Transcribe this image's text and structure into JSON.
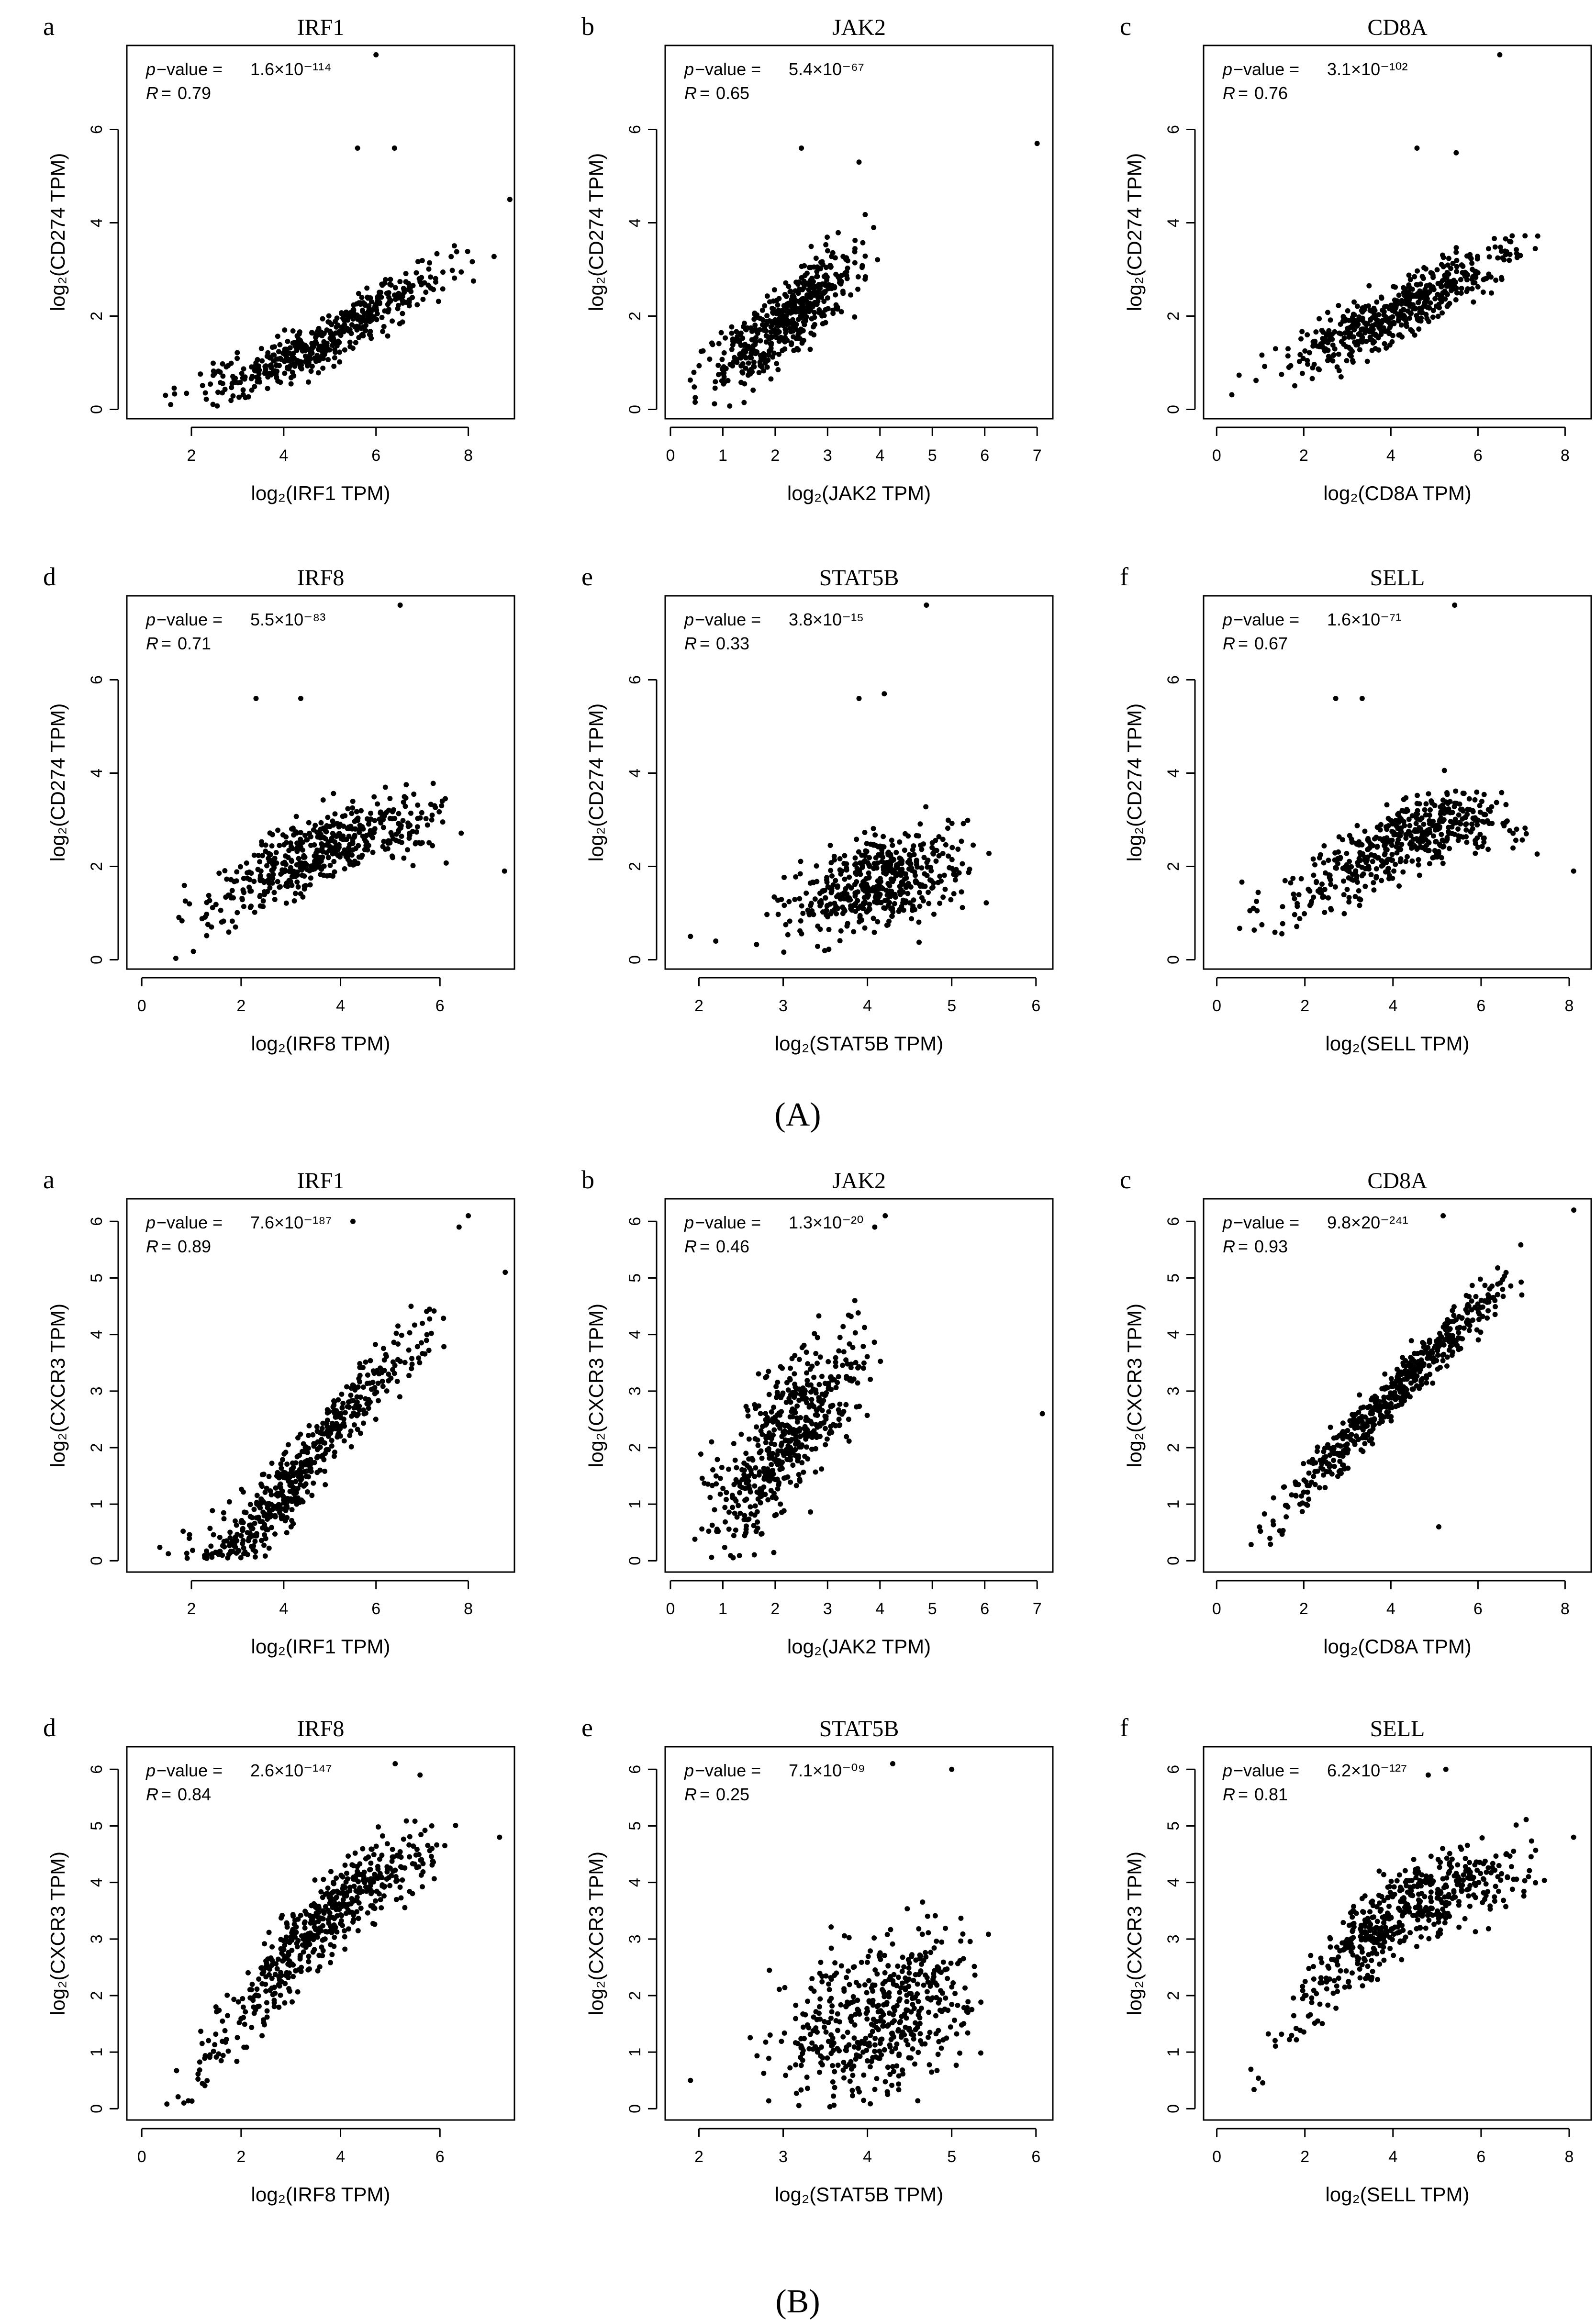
{
  "figure": {
    "group_labels": [
      "(A)",
      "(B)"
    ]
  },
  "chart_data": [
    {
      "group": "A",
      "panel_letter": "a",
      "type": "scatter",
      "title": "IRF1",
      "xlabel": "log₂(IRF1 TPM)",
      "ylabel": "log₂(CD274 TPM)",
      "stat_p": "1.6×10⁻¹¹⁴",
      "stat_r": "0.79",
      "xlim": [
        0.6,
        9
      ],
      "ylim": [
        -0.2,
        7.8
      ],
      "xticks": [
        2,
        4,
        6,
        8
      ],
      "yticks": [
        0,
        2,
        4,
        6
      ],
      "anchors": [
        [
          0.8,
          0.2
        ],
        [
          2,
          0.5
        ],
        [
          3,
          0.6
        ],
        [
          4,
          1.0
        ],
        [
          5,
          1.5
        ],
        [
          6,
          2.2
        ],
        [
          7,
          2.7
        ],
        [
          8.7,
          3.5
        ]
      ],
      "spread": 0.45,
      "n": 500,
      "seed": 11,
      "outliers": [
        [
          6,
          7.6
        ],
        [
          5.6,
          5.6
        ],
        [
          6.4,
          5.6
        ],
        [
          8.9,
          4.5
        ]
      ],
      "marker_color": "#000000"
    },
    {
      "group": "A",
      "panel_letter": "b",
      "type": "scatter",
      "title": "JAK2",
      "xlabel": "log₂(JAK2 TPM)",
      "ylabel": "log₂(CD274 TPM)",
      "stat_p": "5.4×10⁻⁶⁷",
      "stat_r": "0.65",
      "xlim": [
        -0.1,
        7.3
      ],
      "ylim": [
        -0.2,
        7.8
      ],
      "xticks": [
        0,
        1,
        2,
        3,
        4,
        5,
        6,
        7
      ],
      "yticks": [
        0,
        2,
        4,
        6
      ],
      "anchors": [
        [
          0.1,
          0.4
        ],
        [
          0.8,
          0.8
        ],
        [
          1.5,
          1.3
        ],
        [
          2,
          1.8
        ],
        [
          2.7,
          2.4
        ],
        [
          3.5,
          3.0
        ],
        [
          4.2,
          3.6
        ]
      ],
      "spread": 0.75,
      "n": 500,
      "seed": 12,
      "outliers": [
        [
          7,
          5.7
        ],
        [
          2.5,
          5.6
        ],
        [
          3.6,
          5.3
        ]
      ],
      "marker_color": "#000000"
    },
    {
      "group": "A",
      "panel_letter": "c",
      "type": "scatter",
      "title": "CD8A",
      "xlabel": "log₂(CD8A TPM)",
      "ylabel": "log₂(CD274 TPM)",
      "stat_p": "3.1×10⁻¹⁰²",
      "stat_r": "0.76",
      "xlim": [
        -0.3,
        8.6
      ],
      "ylim": [
        -0.2,
        7.8
      ],
      "xticks": [
        0,
        2,
        4,
        6,
        8
      ],
      "yticks": [
        0,
        2,
        4,
        6
      ],
      "anchors": [
        [
          0,
          0.4
        ],
        [
          1,
          0.8
        ],
        [
          2,
          1.2
        ],
        [
          3,
          1.6
        ],
        [
          4,
          2.0
        ],
        [
          5,
          2.5
        ],
        [
          6,
          3.0
        ],
        [
          7,
          3.5
        ],
        [
          8,
          4.0
        ]
      ],
      "spread": 0.55,
      "n": 500,
      "seed": 13,
      "outliers": [
        [
          6.5,
          7.6
        ],
        [
          4.6,
          5.6
        ],
        [
          5.5,
          5.5
        ]
      ],
      "marker_color": "#000000"
    },
    {
      "group": "A",
      "panel_letter": "d",
      "type": "scatter",
      "title": "IRF8",
      "xlabel": "log₂(IRF8 TPM)",
      "ylabel": "log₂(CD274 TPM)",
      "stat_p": "5.5×10⁻⁸³",
      "stat_r": "0.71",
      "xlim": [
        -0.3,
        7.5
      ],
      "ylim": [
        -0.2,
        7.8
      ],
      "xticks": [
        0,
        2,
        4,
        6
      ],
      "yticks": [
        0,
        2,
        4,
        6
      ],
      "anchors": [
        [
          0,
          0.5
        ],
        [
          1,
          0.9
        ],
        [
          2,
          1.5
        ],
        [
          3,
          2.1
        ],
        [
          4,
          2.6
        ],
        [
          5,
          2.9
        ],
        [
          6,
          3.0
        ],
        [
          7,
          2.5
        ]
      ],
      "spread": 0.65,
      "n": 480,
      "seed": 14,
      "outliers": [
        [
          5.2,
          7.6
        ],
        [
          2.3,
          5.6
        ],
        [
          3.2,
          5.6
        ],
        [
          7.3,
          1.9
        ]
      ],
      "marker_color": "#000000"
    },
    {
      "group": "A",
      "panel_letter": "e",
      "type": "scatter",
      "title": "STAT5B",
      "xlabel": "log₂(STAT5B TPM)",
      "ylabel": "log₂(CD274 TPM)",
      "stat_p": "3.8×10⁻¹⁵",
      "stat_r": "0.33",
      "xlim": [
        1.6,
        6.2
      ],
      "ylim": [
        -0.2,
        7.8
      ],
      "xticks": [
        2,
        3,
        4,
        5,
        6
      ],
      "yticks": [
        0,
        2,
        4,
        6
      ],
      "anchors": [
        [
          2.5,
          0.8
        ],
        [
          3,
          1.0
        ],
        [
          3.5,
          1.3
        ],
        [
          4,
          1.6
        ],
        [
          4.5,
          1.8
        ],
        [
          5,
          2.0
        ],
        [
          5.7,
          2.2
        ]
      ],
      "spread": 0.85,
      "n": 480,
      "seed": 15,
      "outliers": [
        [
          4.7,
          7.6
        ],
        [
          3.9,
          5.6
        ],
        [
          4.2,
          5.7
        ],
        [
          1.9,
          0.5
        ],
        [
          2.2,
          0.4
        ]
      ],
      "marker_color": "#000000"
    },
    {
      "group": "A",
      "panel_letter": "f",
      "type": "scatter",
      "title": "SELL",
      "xlabel": "log₂(SELL TPM)",
      "ylabel": "log₂(CD274 TPM)",
      "stat_p": "1.6×10⁻⁷¹",
      "stat_r": "0.67",
      "xlim": [
        -0.3,
        8.5
      ],
      "ylim": [
        -0.2,
        7.8
      ],
      "xticks": [
        0,
        2,
        4,
        6,
        8
      ],
      "yticks": [
        0,
        2,
        4,
        6
      ],
      "anchors": [
        [
          0,
          0.5
        ],
        [
          1,
          0.9
        ],
        [
          2,
          1.4
        ],
        [
          3,
          2.0
        ],
        [
          4,
          2.5
        ],
        [
          5,
          2.9
        ],
        [
          6,
          3.0
        ],
        [
          7,
          2.8
        ],
        [
          8,
          2.5
        ]
      ],
      "spread": 0.65,
      "n": 480,
      "seed": 16,
      "outliers": [
        [
          5.4,
          7.6
        ],
        [
          2.7,
          5.6
        ],
        [
          3.3,
          5.6
        ],
        [
          8.1,
          1.9
        ]
      ],
      "marker_color": "#000000"
    },
    {
      "group": "B",
      "panel_letter": "a",
      "type": "scatter",
      "title": "IRF1",
      "xlabel": "log₂(IRF1 TPM)",
      "ylabel": "log₂(CXCR3 TPM)",
      "stat_p": "7.6×10⁻¹⁸⁷",
      "stat_r": "0.89",
      "xlim": [
        0.6,
        9
      ],
      "ylim": [
        -0.2,
        6.4
      ],
      "xticks": [
        2,
        4,
        6,
        8
      ],
      "yticks": [
        0,
        1,
        2,
        3,
        4,
        5,
        6
      ],
      "anchors": [
        [
          0.8,
          0.1
        ],
        [
          2,
          0.15
        ],
        [
          3,
          0.4
        ],
        [
          4,
          1.2
        ],
        [
          5,
          2.3
        ],
        [
          6,
          3.2
        ],
        [
          7,
          4.0
        ],
        [
          8,
          4.6
        ]
      ],
      "spread": 0.55,
      "n": 520,
      "seed": 21,
      "outliers": [
        [
          5.5,
          6.0
        ],
        [
          7.8,
          5.9
        ],
        [
          8,
          6.1
        ],
        [
          8.8,
          5.1
        ]
      ],
      "marker_color": "#000000"
    },
    {
      "group": "B",
      "panel_letter": "b",
      "type": "scatter",
      "title": "JAK2",
      "xlabel": "log₂(JAK2 TPM)",
      "ylabel": "log₂(CXCR3 TPM)",
      "stat_p": "1.3×10⁻²⁰",
      "stat_r": "0.46",
      "xlim": [
        -0.1,
        7.3
      ],
      "ylim": [
        -0.2,
        6.4
      ],
      "xticks": [
        0,
        1,
        2,
        3,
        4,
        5,
        6,
        7
      ],
      "yticks": [
        0,
        1,
        2,
        3,
        4,
        5,
        6
      ],
      "anchors": [
        [
          0.1,
          0.5
        ],
        [
          0.8,
          0.9
        ],
        [
          1.5,
          1.5
        ],
        [
          2,
          2.0
        ],
        [
          2.7,
          2.7
        ],
        [
          3.5,
          3.4
        ],
        [
          4.2,
          4.0
        ]
      ],
      "spread": 1.05,
      "n": 520,
      "seed": 22,
      "outliers": [
        [
          7.1,
          2.6
        ],
        [
          4.1,
          6.1
        ],
        [
          3.9,
          5.9
        ]
      ],
      "marker_color": "#000000"
    },
    {
      "group": "B",
      "panel_letter": "c",
      "type": "scatter",
      "title": "CD8A",
      "xlabel": "log₂(CD8A TPM)",
      "ylabel": "log₂(CXCR3 TPM)",
      "stat_p": "9.8×20⁻²⁴¹",
      "stat_r": "0.93",
      "xlim": [
        -0.3,
        8.6
      ],
      "ylim": [
        -0.2,
        6.4
      ],
      "xticks": [
        0,
        2,
        4,
        6,
        8
      ],
      "yticks": [
        0,
        1,
        2,
        3,
        4,
        5,
        6
      ],
      "anchors": [
        [
          0,
          0.05
        ],
        [
          0.5,
          0.3
        ],
        [
          1,
          0.6
        ],
        [
          2,
          1.3
        ],
        [
          3,
          2.1
        ],
        [
          4,
          2.9
        ],
        [
          5,
          3.7
        ],
        [
          6,
          4.5
        ],
        [
          7,
          5.0
        ],
        [
          8,
          5.5
        ]
      ],
      "spread": 0.38,
      "n": 520,
      "seed": 23,
      "outliers": [
        [
          5.1,
          0.6
        ],
        [
          5.2,
          6.1
        ],
        [
          8.2,
          6.2
        ]
      ],
      "marker_color": "#000000"
    },
    {
      "group": "B",
      "panel_letter": "d",
      "type": "scatter",
      "title": "IRF8",
      "xlabel": "log₂(IRF8 TPM)",
      "ylabel": "log₂(CXCR3 TPM)",
      "stat_p": "2.6×10⁻¹⁴⁷",
      "stat_r": "0.84",
      "xlim": [
        -0.3,
        7.5
      ],
      "ylim": [
        -0.2,
        6.4
      ],
      "xticks": [
        0,
        2,
        4,
        6
      ],
      "yticks": [
        0,
        1,
        2,
        3,
        4,
        5,
        6
      ],
      "anchors": [
        [
          0,
          0.05
        ],
        [
          1,
          0.5
        ],
        [
          2,
          1.6
        ],
        [
          3,
          2.8
        ],
        [
          4,
          3.6
        ],
        [
          5,
          4.2
        ],
        [
          6,
          4.6
        ],
        [
          7,
          4.8
        ]
      ],
      "spread": 0.6,
      "n": 520,
      "seed": 24,
      "outliers": [
        [
          5.1,
          6.1
        ],
        [
          5.6,
          5.9
        ],
        [
          7.2,
          4.8
        ]
      ],
      "marker_color": "#000000"
    },
    {
      "group": "B",
      "panel_letter": "e",
      "type": "scatter",
      "title": "STAT5B",
      "xlabel": "log₂(STAT5B TPM)",
      "ylabel": "log₂(CXCR3 TPM)",
      "stat_p": "7.1×10⁻⁰⁹",
      "stat_r": "0.25",
      "xlim": [
        1.6,
        6.2
      ],
      "ylim": [
        -0.2,
        6.4
      ],
      "xticks": [
        2,
        3,
        4,
        5,
        6
      ],
      "yticks": [
        0,
        1,
        2,
        3,
        4,
        5,
        6
      ],
      "anchors": [
        [
          2.5,
          1.0
        ],
        [
          3,
          1.2
        ],
        [
          3.5,
          1.4
        ],
        [
          4,
          1.7
        ],
        [
          4.5,
          1.9
        ],
        [
          5,
          2.2
        ],
        [
          5.7,
          2.4
        ]
      ],
      "spread": 1.2,
      "n": 500,
      "seed": 25,
      "outliers": [
        [
          4.3,
          6.1
        ],
        [
          5,
          6.0
        ],
        [
          1.9,
          0.5
        ]
      ],
      "marker_color": "#000000"
    },
    {
      "group": "B",
      "panel_letter": "f",
      "type": "scatter",
      "title": "SELL",
      "xlabel": "log₂(SELL TPM)",
      "ylabel": "log₂(CXCR3 TPM)",
      "stat_p": "6.2×10⁻¹²⁷",
      "stat_r": "0.81",
      "xlim": [
        -0.3,
        8.5
      ],
      "ylim": [
        -0.2,
        6.4
      ],
      "xticks": [
        0,
        2,
        4,
        6,
        8
      ],
      "yticks": [
        0,
        1,
        2,
        3,
        4,
        5,
        6
      ],
      "anchors": [
        [
          0,
          0.05
        ],
        [
          1,
          0.8
        ],
        [
          2,
          1.8
        ],
        [
          3,
          2.8
        ],
        [
          4,
          3.4
        ],
        [
          5,
          3.8
        ],
        [
          6,
          4.1
        ],
        [
          7,
          4.3
        ],
        [
          8,
          4.5
        ]
      ],
      "spread": 0.65,
      "n": 520,
      "seed": 26,
      "outliers": [
        [
          5.2,
          6.0
        ],
        [
          4.8,
          5.9
        ],
        [
          8.1,
          4.8
        ]
      ],
      "marker_color": "#000000"
    }
  ]
}
